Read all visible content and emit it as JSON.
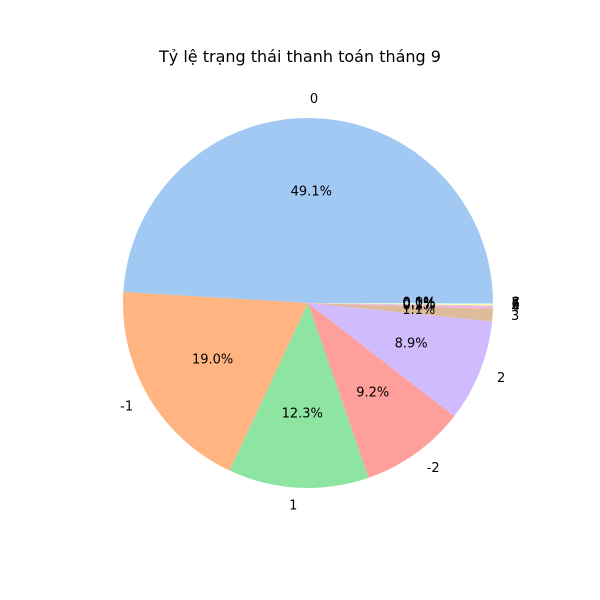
{
  "chart_data": {
    "type": "pie",
    "title": "Tỷ lệ trạng thái thanh toán tháng 9",
    "start_angle_deg": 0,
    "direction": "counterclockwise",
    "slices": [
      {
        "label": "0",
        "value": 49.1,
        "pct_label": "49.1%",
        "color": "#a1c9f4"
      },
      {
        "label": "-1",
        "value": 19.0,
        "pct_label": "19.0%",
        "color": "#ffb482"
      },
      {
        "label": "1",
        "value": 12.3,
        "pct_label": "12.3%",
        "color": "#8de5a1"
      },
      {
        "label": "-2",
        "value": 9.2,
        "pct_label": "9.2%",
        "color": "#ff9f9b"
      },
      {
        "label": "2",
        "value": 8.9,
        "pct_label": "8.9%",
        "color": "#d0bbff"
      },
      {
        "label": "3",
        "value": 1.1,
        "pct_label": "1.1%",
        "color": "#debb9b"
      },
      {
        "label": "4",
        "value": 0.2,
        "pct_label": "0.2%",
        "color": "#fab0e4"
      },
      {
        "label": "5",
        "value": 0.1,
        "pct_label": "0.1%",
        "color": "#cfcfcf"
      },
      {
        "label": "6",
        "value": 0.1,
        "pct_label": "0.1%",
        "color": "#fffea3"
      },
      {
        "label": "7",
        "value": 0.1,
        "pct_label": "0.1%",
        "color": "#b9f2f0"
      },
      {
        "label": "8",
        "value": 0.0,
        "pct_label": "0.0%",
        "color": "#a1c9f4"
      }
    ]
  }
}
